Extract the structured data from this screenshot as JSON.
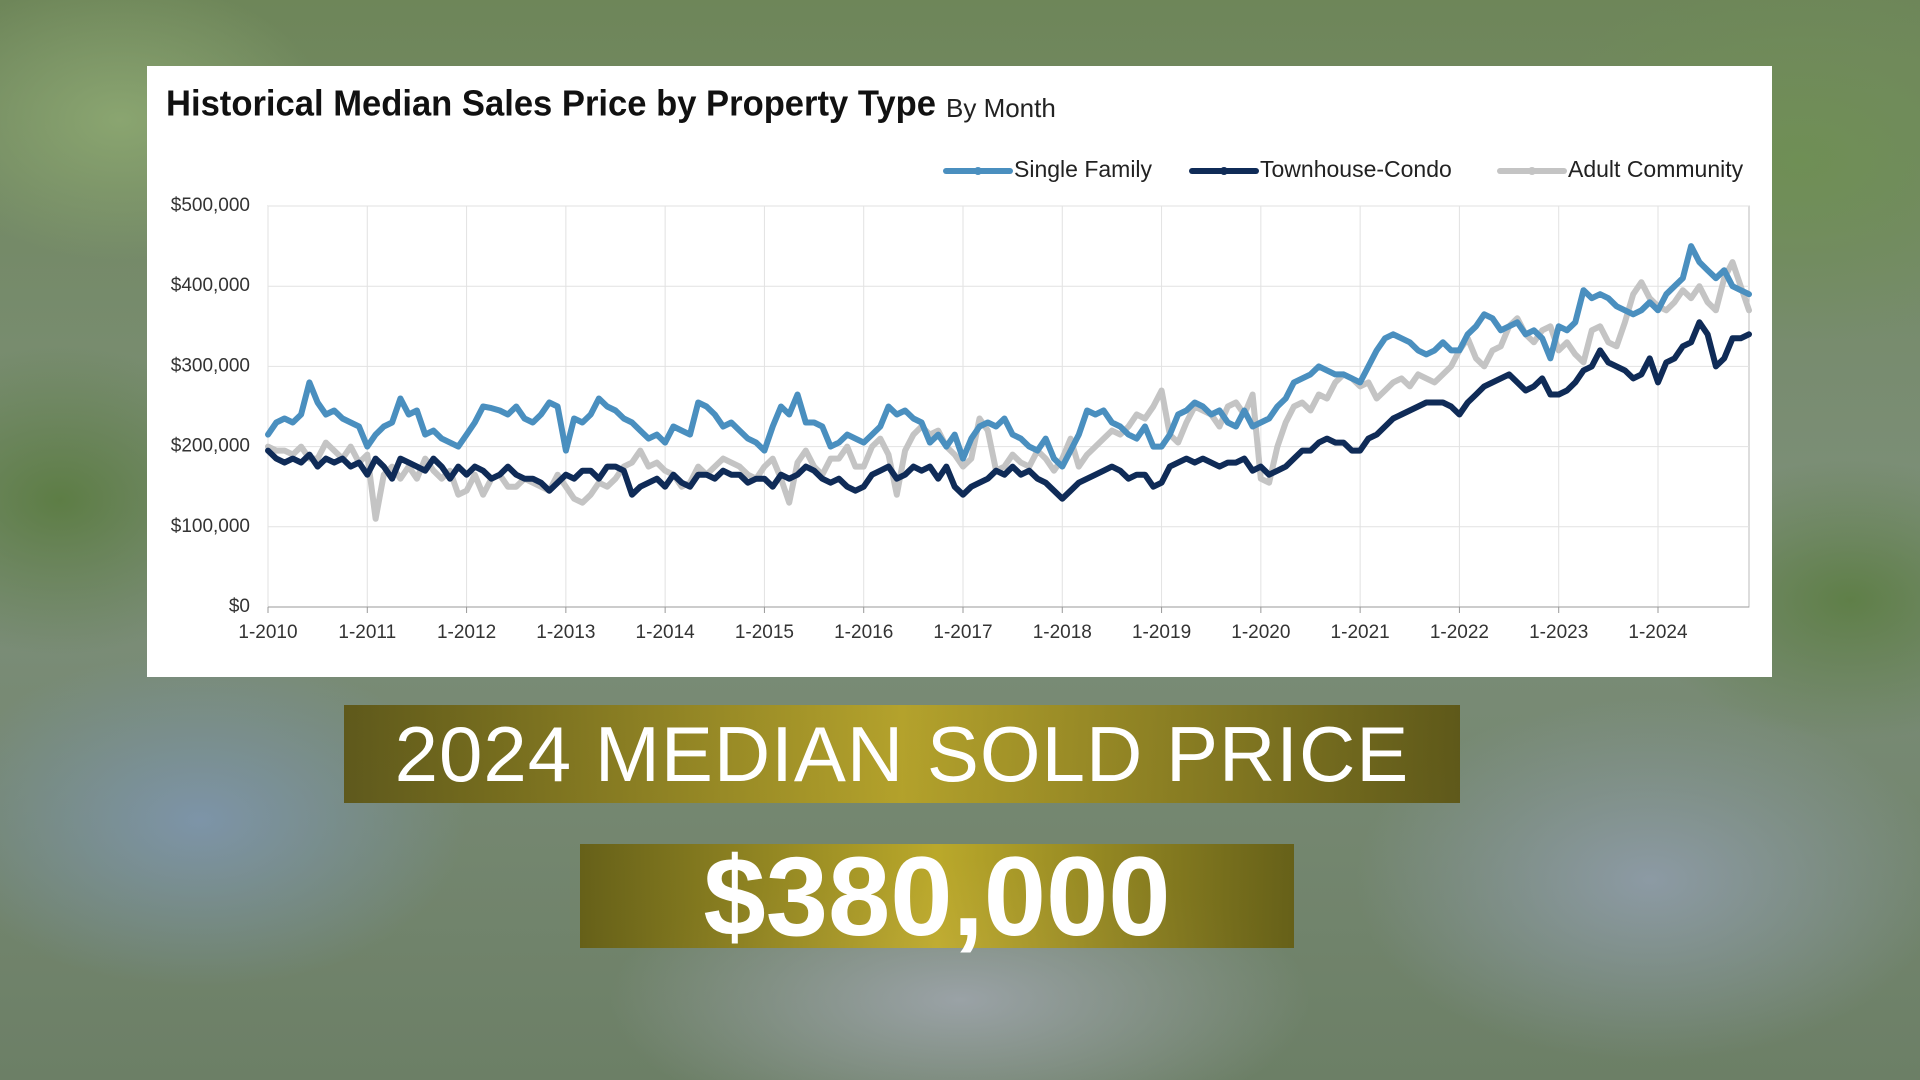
{
  "chart_data": {
    "type": "line",
    "title": "Historical Median Sales Price by Property Type",
    "subtitle": "By Month",
    "x": [
      "1-2010",
      "2-2010",
      "3-2010",
      "4-2010",
      "5-2010",
      "6-2010",
      "7-2010",
      "8-2010",
      "9-2010",
      "10-2010",
      "11-2010",
      "12-2010",
      "1-2011",
      "2-2011",
      "3-2011",
      "4-2011",
      "5-2011",
      "6-2011",
      "7-2011",
      "8-2011",
      "9-2011",
      "10-2011",
      "11-2011",
      "12-2011",
      "1-2012",
      "2-2012",
      "3-2012",
      "4-2012",
      "5-2012",
      "6-2012",
      "7-2012",
      "8-2012",
      "9-2012",
      "10-2012",
      "11-2012",
      "12-2012",
      "1-2013",
      "2-2013",
      "3-2013",
      "4-2013",
      "5-2013",
      "6-2013",
      "7-2013",
      "8-2013",
      "9-2013",
      "10-2013",
      "11-2013",
      "12-2013",
      "1-2014",
      "2-2014",
      "3-2014",
      "4-2014",
      "5-2014",
      "6-2014",
      "7-2014",
      "8-2014",
      "9-2014",
      "10-2014",
      "11-2014",
      "12-2014",
      "1-2015",
      "2-2015",
      "3-2015",
      "4-2015",
      "5-2015",
      "6-2015",
      "7-2015",
      "8-2015",
      "9-2015",
      "10-2015",
      "11-2015",
      "12-2015",
      "1-2016",
      "2-2016",
      "3-2016",
      "4-2016",
      "5-2016",
      "6-2016",
      "7-2016",
      "8-2016",
      "9-2016",
      "10-2016",
      "11-2016",
      "12-2016",
      "1-2017",
      "2-2017",
      "3-2017",
      "4-2017",
      "5-2017",
      "6-2017",
      "7-2017",
      "8-2017",
      "9-2017",
      "10-2017",
      "11-2017",
      "12-2017",
      "1-2018",
      "2-2018",
      "3-2018",
      "4-2018",
      "5-2018",
      "6-2018",
      "7-2018",
      "8-2018",
      "9-2018",
      "10-2018",
      "11-2018",
      "12-2018",
      "1-2019",
      "2-2019",
      "3-2019",
      "4-2019",
      "5-2019",
      "6-2019",
      "7-2019",
      "8-2019",
      "9-2019",
      "10-2019",
      "11-2019",
      "12-2019",
      "1-2020",
      "2-2020",
      "3-2020",
      "4-2020",
      "5-2020",
      "6-2020",
      "7-2020",
      "8-2020",
      "9-2020",
      "10-2020",
      "11-2020",
      "12-2020",
      "1-2021",
      "2-2021",
      "3-2021",
      "4-2021",
      "5-2021",
      "6-2021",
      "7-2021",
      "8-2021",
      "9-2021",
      "10-2021",
      "11-2021",
      "12-2021",
      "1-2022",
      "2-2022",
      "3-2022",
      "4-2022",
      "5-2022",
      "6-2022",
      "7-2022",
      "8-2022",
      "9-2022",
      "10-2022",
      "11-2022",
      "12-2022",
      "1-2023",
      "2-2023",
      "3-2023",
      "4-2023",
      "5-2023",
      "6-2023",
      "7-2023",
      "8-2023",
      "9-2023",
      "10-2023",
      "11-2023",
      "12-2023",
      "1-2024",
      "2-2024",
      "3-2024",
      "4-2024",
      "5-2024",
      "6-2024",
      "7-2024",
      "8-2024",
      "9-2024",
      "10-2024",
      "11-2024",
      "12-2024"
    ],
    "xtick_indices": [
      0,
      12,
      24,
      36,
      48,
      60,
      72,
      84,
      96,
      108,
      120,
      132,
      144,
      156,
      168
    ],
    "series": [
      {
        "name": "Single Family",
        "color": "#4a8fbf",
        "values": [
          215000,
          230000,
          235000,
          230000,
          240000,
          280000,
          255000,
          240000,
          245000,
          235000,
          230000,
          225000,
          200000,
          215000,
          225000,
          230000,
          260000,
          240000,
          245000,
          215000,
          220000,
          210000,
          205000,
          200000,
          215000,
          230000,
          250000,
          248000,
          245000,
          240000,
          250000,
          235000,
          230000,
          240000,
          255000,
          250000,
          195000,
          235000,
          230000,
          240000,
          260000,
          250000,
          245000,
          235000,
          230000,
          220000,
          210000,
          215000,
          205000,
          225000,
          220000,
          215000,
          255000,
          250000,
          240000,
          225000,
          230000,
          220000,
          210000,
          205000,
          195000,
          225000,
          250000,
          240000,
          265000,
          230000,
          230000,
          225000,
          200000,
          205000,
          215000,
          210000,
          205000,
          215000,
          225000,
          250000,
          240000,
          245000,
          235000,
          230000,
          205000,
          215000,
          200000,
          215000,
          185000,
          210000,
          225000,
          230000,
          225000,
          235000,
          215000,
          210000,
          200000,
          195000,
          210000,
          185000,
          175000,
          195000,
          215000,
          245000,
          240000,
          245000,
          230000,
          225000,
          215000,
          210000,
          225000,
          200000,
          200000,
          215000,
          240000,
          245000,
          255000,
          250000,
          240000,
          245000,
          230000,
          225000,
          245000,
          225000,
          230000,
          235000,
          250000,
          260000,
          280000,
          285000,
          290000,
          300000,
          295000,
          290000,
          290000,
          285000,
          280000,
          300000,
          320000,
          335000,
          340000,
          335000,
          330000,
          320000,
          315000,
          320000,
          330000,
          320000,
          320000,
          340000,
          350000,
          365000,
          360000,
          345000,
          350000,
          355000,
          340000,
          345000,
          335000,
          310000,
          350000,
          345000,
          355000,
          395000,
          385000,
          390000,
          385000,
          375000,
          370000,
          365000,
          370000,
          380000,
          370000,
          390000,
          400000,
          410000,
          450000,
          430000,
          420000,
          410000,
          420000,
          400000,
          395000,
          390000
        ]
      },
      {
        "name": "Townhouse-Condo",
        "color": "#0f2b57",
        "values": [
          195000,
          185000,
          180000,
          185000,
          180000,
          190000,
          175000,
          185000,
          180000,
          185000,
          175000,
          180000,
          165000,
          185000,
          175000,
          160000,
          185000,
          180000,
          175000,
          170000,
          185000,
          175000,
          160000,
          175000,
          165000,
          175000,
          170000,
          160000,
          165000,
          175000,
          165000,
          160000,
          160000,
          155000,
          145000,
          155000,
          165000,
          160000,
          170000,
          170000,
          160000,
          175000,
          175000,
          170000,
          140000,
          150000,
          155000,
          160000,
          150000,
          165000,
          155000,
          150000,
          165000,
          165000,
          160000,
          170000,
          165000,
          165000,
          155000,
          160000,
          160000,
          150000,
          165000,
          160000,
          165000,
          175000,
          170000,
          160000,
          155000,
          160000,
          150000,
          145000,
          150000,
          165000,
          170000,
          175000,
          160000,
          165000,
          175000,
          170000,
          175000,
          160000,
          175000,
          150000,
          140000,
          150000,
          155000,
          160000,
          170000,
          165000,
          175000,
          165000,
          170000,
          160000,
          155000,
          145000,
          135000,
          145000,
          155000,
          160000,
          165000,
          170000,
          175000,
          170000,
          160000,
          165000,
          165000,
          150000,
          155000,
          175000,
          180000,
          185000,
          180000,
          185000,
          180000,
          175000,
          180000,
          180000,
          185000,
          170000,
          175000,
          165000,
          170000,
          175000,
          185000,
          195000,
          195000,
          205000,
          210000,
          205000,
          205000,
          195000,
          195000,
          210000,
          215000,
          225000,
          235000,
          240000,
          245000,
          250000,
          255000,
          255000,
          255000,
          250000,
          240000,
          255000,
          265000,
          275000,
          280000,
          285000,
          290000,
          280000,
          270000,
          275000,
          285000,
          265000,
          265000,
          270000,
          280000,
          295000,
          300000,
          320000,
          305000,
          300000,
          295000,
          285000,
          290000,
          310000,
          280000,
          305000,
          310000,
          325000,
          330000,
          355000,
          340000,
          300000,
          310000,
          335000,
          335000,
          340000
        ]
      },
      {
        "name": "Adult Community",
        "color": "#c4c4c4",
        "values": [
          200000,
          195000,
          195000,
          190000,
          200000,
          185000,
          185000,
          205000,
          195000,
          185000,
          200000,
          180000,
          190000,
          110000,
          165000,
          175000,
          160000,
          175000,
          160000,
          185000,
          170000,
          160000,
          170000,
          140000,
          145000,
          165000,
          140000,
          160000,
          165000,
          150000,
          150000,
          160000,
          155000,
          150000,
          145000,
          165000,
          150000,
          135000,
          130000,
          140000,
          155000,
          150000,
          160000,
          175000,
          180000,
          195000,
          175000,
          180000,
          170000,
          165000,
          150000,
          155000,
          175000,
          165000,
          175000,
          185000,
          180000,
          175000,
          165000,
          160000,
          175000,
          185000,
          160000,
          130000,
          180000,
          195000,
          175000,
          165000,
          185000,
          185000,
          200000,
          175000,
          175000,
          200000,
          210000,
          190000,
          140000,
          195000,
          215000,
          225000,
          215000,
          220000,
          200000,
          190000,
          175000,
          185000,
          235000,
          220000,
          170000,
          175000,
          190000,
          180000,
          175000,
          195000,
          185000,
          170000,
          185000,
          210000,
          175000,
          190000,
          200000,
          210000,
          220000,
          215000,
          225000,
          240000,
          235000,
          250000,
          270000,
          215000,
          205000,
          230000,
          250000,
          245000,
          240000,
          225000,
          250000,
          255000,
          240000,
          265000,
          160000,
          155000,
          200000,
          230000,
          250000,
          255000,
          245000,
          265000,
          260000,
          280000,
          290000,
          285000,
          275000,
          280000,
          260000,
          270000,
          280000,
          285000,
          275000,
          290000,
          285000,
          280000,
          290000,
          300000,
          320000,
          335000,
          310000,
          300000,
          320000,
          325000,
          350000,
          360000,
          340000,
          330000,
          345000,
          350000,
          320000,
          330000,
          315000,
          305000,
          345000,
          350000,
          330000,
          325000,
          355000,
          390000,
          405000,
          385000,
          375000,
          370000,
          380000,
          395000,
          385000,
          400000,
          380000,
          370000,
          410000,
          430000,
          400000,
          370000
        ]
      }
    ],
    "ylim": [
      0,
      500000
    ],
    "yticks": [
      {
        "value": 0,
        "label": "$0"
      },
      {
        "value": 100000,
        "label": "$100,000"
      },
      {
        "value": 200000,
        "label": "$200,000"
      },
      {
        "value": 300000,
        "label": "$300,000"
      },
      {
        "value": 400000,
        "label": "$400,000"
      },
      {
        "value": 500000,
        "label": "$500,000"
      }
    ],
    "grid": true,
    "legend": "top-right"
  },
  "overlay": {
    "heading": "2024 MEDIAN SOLD PRICE",
    "price": "$380,000"
  }
}
